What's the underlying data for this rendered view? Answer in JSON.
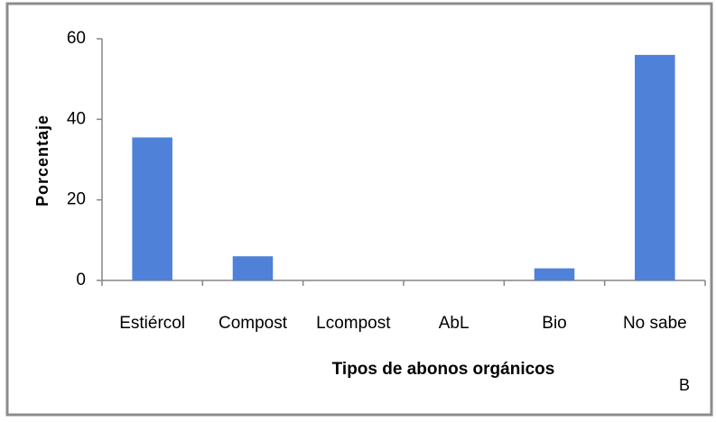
{
  "chart_data": {
    "type": "bar",
    "x_label": "Tipos de abonos orgánicos",
    "y_label": "Porcentaje",
    "annotation": "B",
    "categories": [
      "Estiércol",
      "Compost",
      "Lcompost",
      "AbL",
      "Bio",
      "No sabe"
    ],
    "values": [
      35.5,
      6,
      0,
      0,
      3,
      56
    ],
    "color": "#4f81d9",
    "ylim": [
      0,
      60
    ],
    "yticks": [
      0,
      20,
      40,
      60
    ],
    "grid": false
  }
}
